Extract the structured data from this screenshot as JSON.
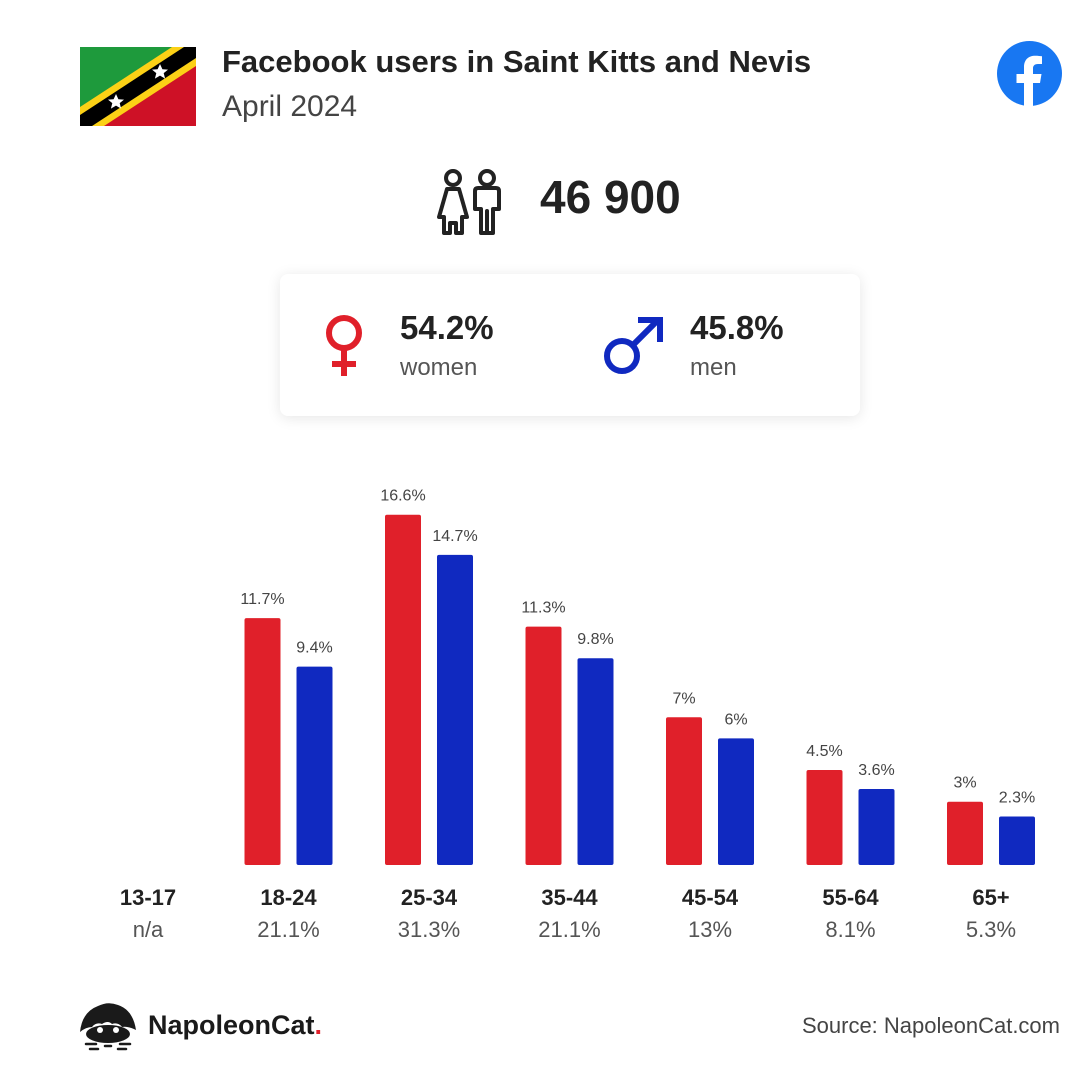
{
  "header": {
    "title": "Facebook users in Saint Kitts and Nevis",
    "subtitle": "April 2024",
    "flag_icon": "saint-kitts-and-nevis-flag-icon",
    "brand_icon": "facebook-icon"
  },
  "total": {
    "icon": "users-icon",
    "value": "46 900"
  },
  "gender": {
    "women": {
      "pct": "54.2%",
      "label": "women",
      "icon": "female-symbol-icon",
      "color": "#e0202a"
    },
    "men": {
      "pct": "45.8%",
      "label": "men",
      "icon": "male-symbol-icon",
      "color": "#1029c0"
    }
  },
  "chart_data": {
    "type": "bar",
    "categories": [
      "13-17",
      "18-24",
      "25-34",
      "35-44",
      "45-54",
      "55-64",
      "65+"
    ],
    "category_totals": [
      "n/a",
      "21.1%",
      "31.3%",
      "21.1%",
      "13%",
      "8.1%",
      "5.3%"
    ],
    "series": [
      {
        "color": "#e0202a",
        "values": [
          null,
          11.7,
          16.6,
          11.3,
          7,
          4.5,
          3
        ],
        "labels": [
          "",
          "11.7%",
          "16.6%",
          "11.3%",
          "7%",
          "4.5%",
          "3%"
        ]
      },
      {
        "color": "#1029c0",
        "values": [
          null,
          9.4,
          14.7,
          9.8,
          6,
          3.6,
          2.3
        ],
        "labels": [
          "",
          "9.4%",
          "14.7%",
          "9.8%",
          "6%",
          "3.6%",
          "2.3%"
        ]
      }
    ]
  },
  "footer": {
    "brand": "NapoleonCat",
    "brand_dot": ".",
    "brand_icon": "napoleoncat-logo-icon",
    "source": "Source: NapoleonCat.com"
  }
}
